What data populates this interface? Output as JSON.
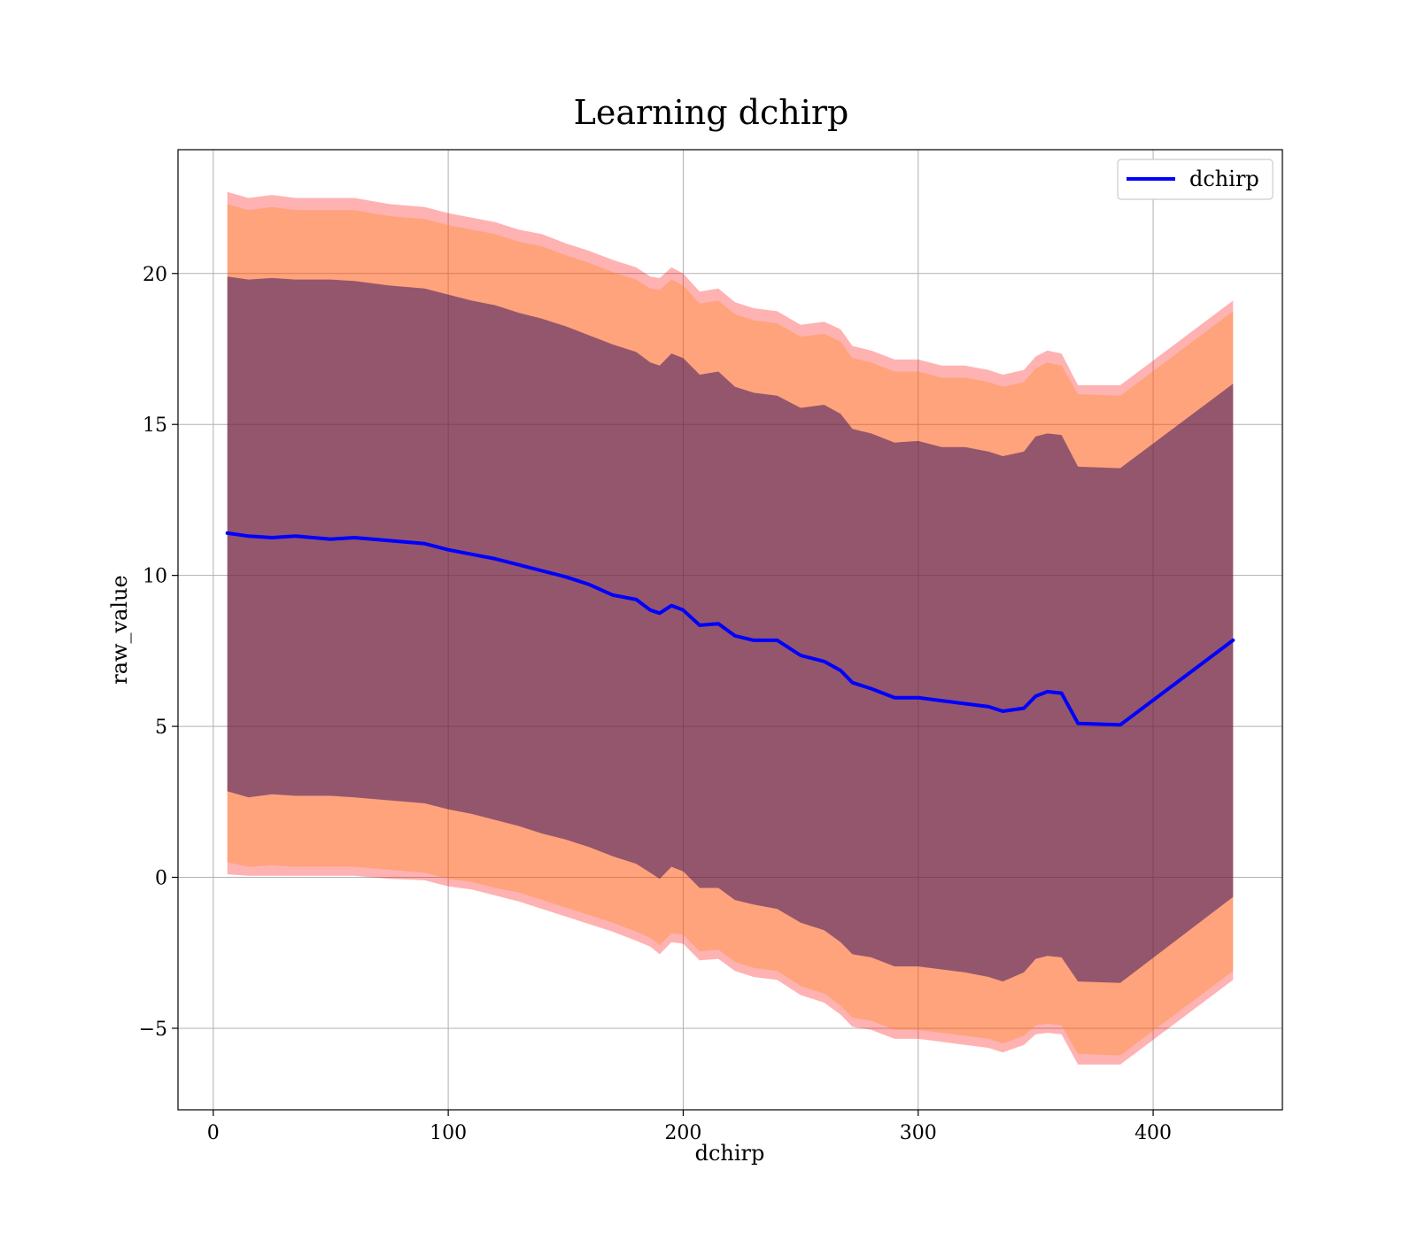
{
  "chart_data": {
    "type": "line",
    "title": "Learning dchirp",
    "xlabel": "dchirp",
    "ylabel": "raw_value",
    "xlim": [
      -15,
      455
    ],
    "ylim": [
      -7.7,
      24.1
    ],
    "xticks": [
      0,
      100,
      200,
      300,
      400
    ],
    "yticks": [
      -5,
      0,
      5,
      10,
      15,
      20
    ],
    "xtick_labels": [
      "0",
      "100",
      "200",
      "300",
      "400"
    ],
    "ytick_labels": [
      "−5",
      "0",
      "5",
      "10",
      "15",
      "20"
    ],
    "grid": true,
    "legend": {
      "position": "top-right",
      "entries": [
        "dchirp"
      ]
    },
    "colors": {
      "line": "#0000ff",
      "outer_band": "#ff0000",
      "middle_band": "#ff8000",
      "inner_band": "#2a0a5e"
    },
    "x": [
      6,
      15,
      25,
      35,
      50,
      60,
      75,
      90,
      100,
      110,
      120,
      130,
      140,
      150,
      160,
      170,
      180,
      186,
      190,
      195,
      200,
      207,
      215,
      222,
      230,
      240,
      250,
      260,
      267,
      272,
      280,
      290,
      300,
      310,
      320,
      330,
      336,
      345,
      350,
      355,
      361,
      368,
      386,
      434
    ],
    "series": [
      {
        "name": "dchirp",
        "role": "mean",
        "values": [
          11.4,
          11.3,
          11.25,
          11.3,
          11.2,
          11.25,
          11.15,
          11.05,
          10.85,
          10.7,
          10.55,
          10.35,
          10.15,
          9.95,
          9.7,
          9.35,
          9.2,
          8.85,
          8.75,
          9.0,
          8.85,
          8.35,
          8.4,
          8.0,
          7.85,
          7.85,
          7.35,
          7.15,
          6.85,
          6.45,
          6.25,
          5.95,
          5.95,
          5.85,
          5.75,
          5.65,
          5.5,
          5.6,
          6.0,
          6.15,
          6.1,
          5.1,
          5.05,
          7.85
        ]
      },
      {
        "name": "",
        "role": "band-outer",
        "upper": [
          22.7,
          22.5,
          22.6,
          22.5,
          22.5,
          22.5,
          22.3,
          22.2,
          22.0,
          21.85,
          21.7,
          21.45,
          21.3,
          21.0,
          20.75,
          20.45,
          20.2,
          19.9,
          19.85,
          20.2,
          20.0,
          19.4,
          19.5,
          19.05,
          18.85,
          18.75,
          18.3,
          18.4,
          18.15,
          17.6,
          17.45,
          17.15,
          17.15,
          16.95,
          16.95,
          16.8,
          16.65,
          16.8,
          17.25,
          17.45,
          17.35,
          16.3,
          16.3,
          19.1
        ],
        "lower": [
          0.1,
          0.05,
          0.05,
          0.05,
          0.05,
          0.05,
          -0.05,
          -0.1,
          -0.3,
          -0.4,
          -0.6,
          -0.8,
          -1.05,
          -1.3,
          -1.55,
          -1.8,
          -2.1,
          -2.3,
          -2.55,
          -2.15,
          -2.2,
          -2.75,
          -2.7,
          -3.1,
          -3.3,
          -3.4,
          -3.9,
          -4.15,
          -4.55,
          -4.95,
          -5.05,
          -5.35,
          -5.35,
          -5.45,
          -5.55,
          -5.65,
          -5.8,
          -5.55,
          -5.2,
          -5.15,
          -5.2,
          -6.2,
          -6.2,
          -3.4
        ]
      },
      {
        "name": "",
        "role": "band-middle",
        "upper": [
          22.3,
          22.1,
          22.2,
          22.1,
          22.1,
          22.1,
          21.9,
          21.8,
          21.6,
          21.45,
          21.3,
          21.05,
          20.9,
          20.6,
          20.35,
          20.05,
          19.8,
          19.5,
          19.45,
          19.8,
          19.6,
          19.0,
          19.1,
          18.65,
          18.45,
          18.35,
          17.9,
          18.0,
          17.75,
          17.2,
          17.05,
          16.75,
          16.75,
          16.55,
          16.55,
          16.4,
          16.25,
          16.4,
          16.85,
          17.05,
          16.95,
          16.0,
          15.95,
          18.75
        ],
        "lower": [
          0.5,
          0.35,
          0.4,
          0.35,
          0.35,
          0.35,
          0.25,
          0.15,
          -0.05,
          -0.15,
          -0.35,
          -0.5,
          -0.75,
          -1.0,
          -1.25,
          -1.5,
          -1.8,
          -2.0,
          -2.25,
          -1.85,
          -1.9,
          -2.45,
          -2.4,
          -2.8,
          -3.0,
          -3.1,
          -3.6,
          -3.85,
          -4.25,
          -4.65,
          -4.75,
          -5.05,
          -5.05,
          -5.15,
          -5.25,
          -5.35,
          -5.5,
          -5.25,
          -4.9,
          -4.85,
          -4.9,
          -5.85,
          -5.9,
          -3.1
        ]
      },
      {
        "name": "",
        "role": "band-inner",
        "upper": [
          19.9,
          19.8,
          19.85,
          19.8,
          19.8,
          19.75,
          19.6,
          19.5,
          19.3,
          19.1,
          18.95,
          18.7,
          18.5,
          18.25,
          17.95,
          17.65,
          17.4,
          17.05,
          16.95,
          17.35,
          17.2,
          16.65,
          16.75,
          16.25,
          16.05,
          15.95,
          15.55,
          15.65,
          15.35,
          14.85,
          14.7,
          14.4,
          14.45,
          14.25,
          14.25,
          14.1,
          13.95,
          14.1,
          14.6,
          14.7,
          14.65,
          13.6,
          13.55,
          16.35
        ],
        "lower": [
          2.85,
          2.65,
          2.75,
          2.7,
          2.7,
          2.65,
          2.55,
          2.45,
          2.25,
          2.1,
          1.9,
          1.7,
          1.45,
          1.25,
          1.0,
          0.7,
          0.45,
          0.15,
          -0.05,
          0.35,
          0.2,
          -0.35,
          -0.35,
          -0.75,
          -0.9,
          -1.05,
          -1.5,
          -1.75,
          -2.15,
          -2.55,
          -2.65,
          -2.95,
          -2.95,
          -3.05,
          -3.15,
          -3.3,
          -3.45,
          -3.15,
          -2.7,
          -2.6,
          -2.65,
          -3.45,
          -3.5,
          -0.65
        ]
      }
    ]
  }
}
